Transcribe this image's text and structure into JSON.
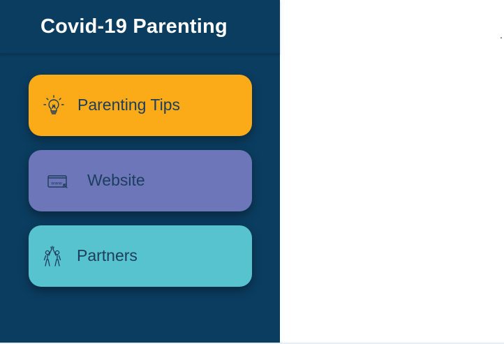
{
  "panel": {
    "title": "Covid-19 Parenting",
    "background": "#0b3d60"
  },
  "menu": [
    {
      "label": "Parenting Tips",
      "icon": "lightbulb-icon",
      "color": "#fbab18"
    },
    {
      "label": "Website",
      "icon": "www-browser-icon",
      "color": "#6d76b8"
    },
    {
      "label": "Partners",
      "icon": "high-five-people-icon",
      "color": "#57c3cf"
    }
  ],
  "page_marker": "."
}
